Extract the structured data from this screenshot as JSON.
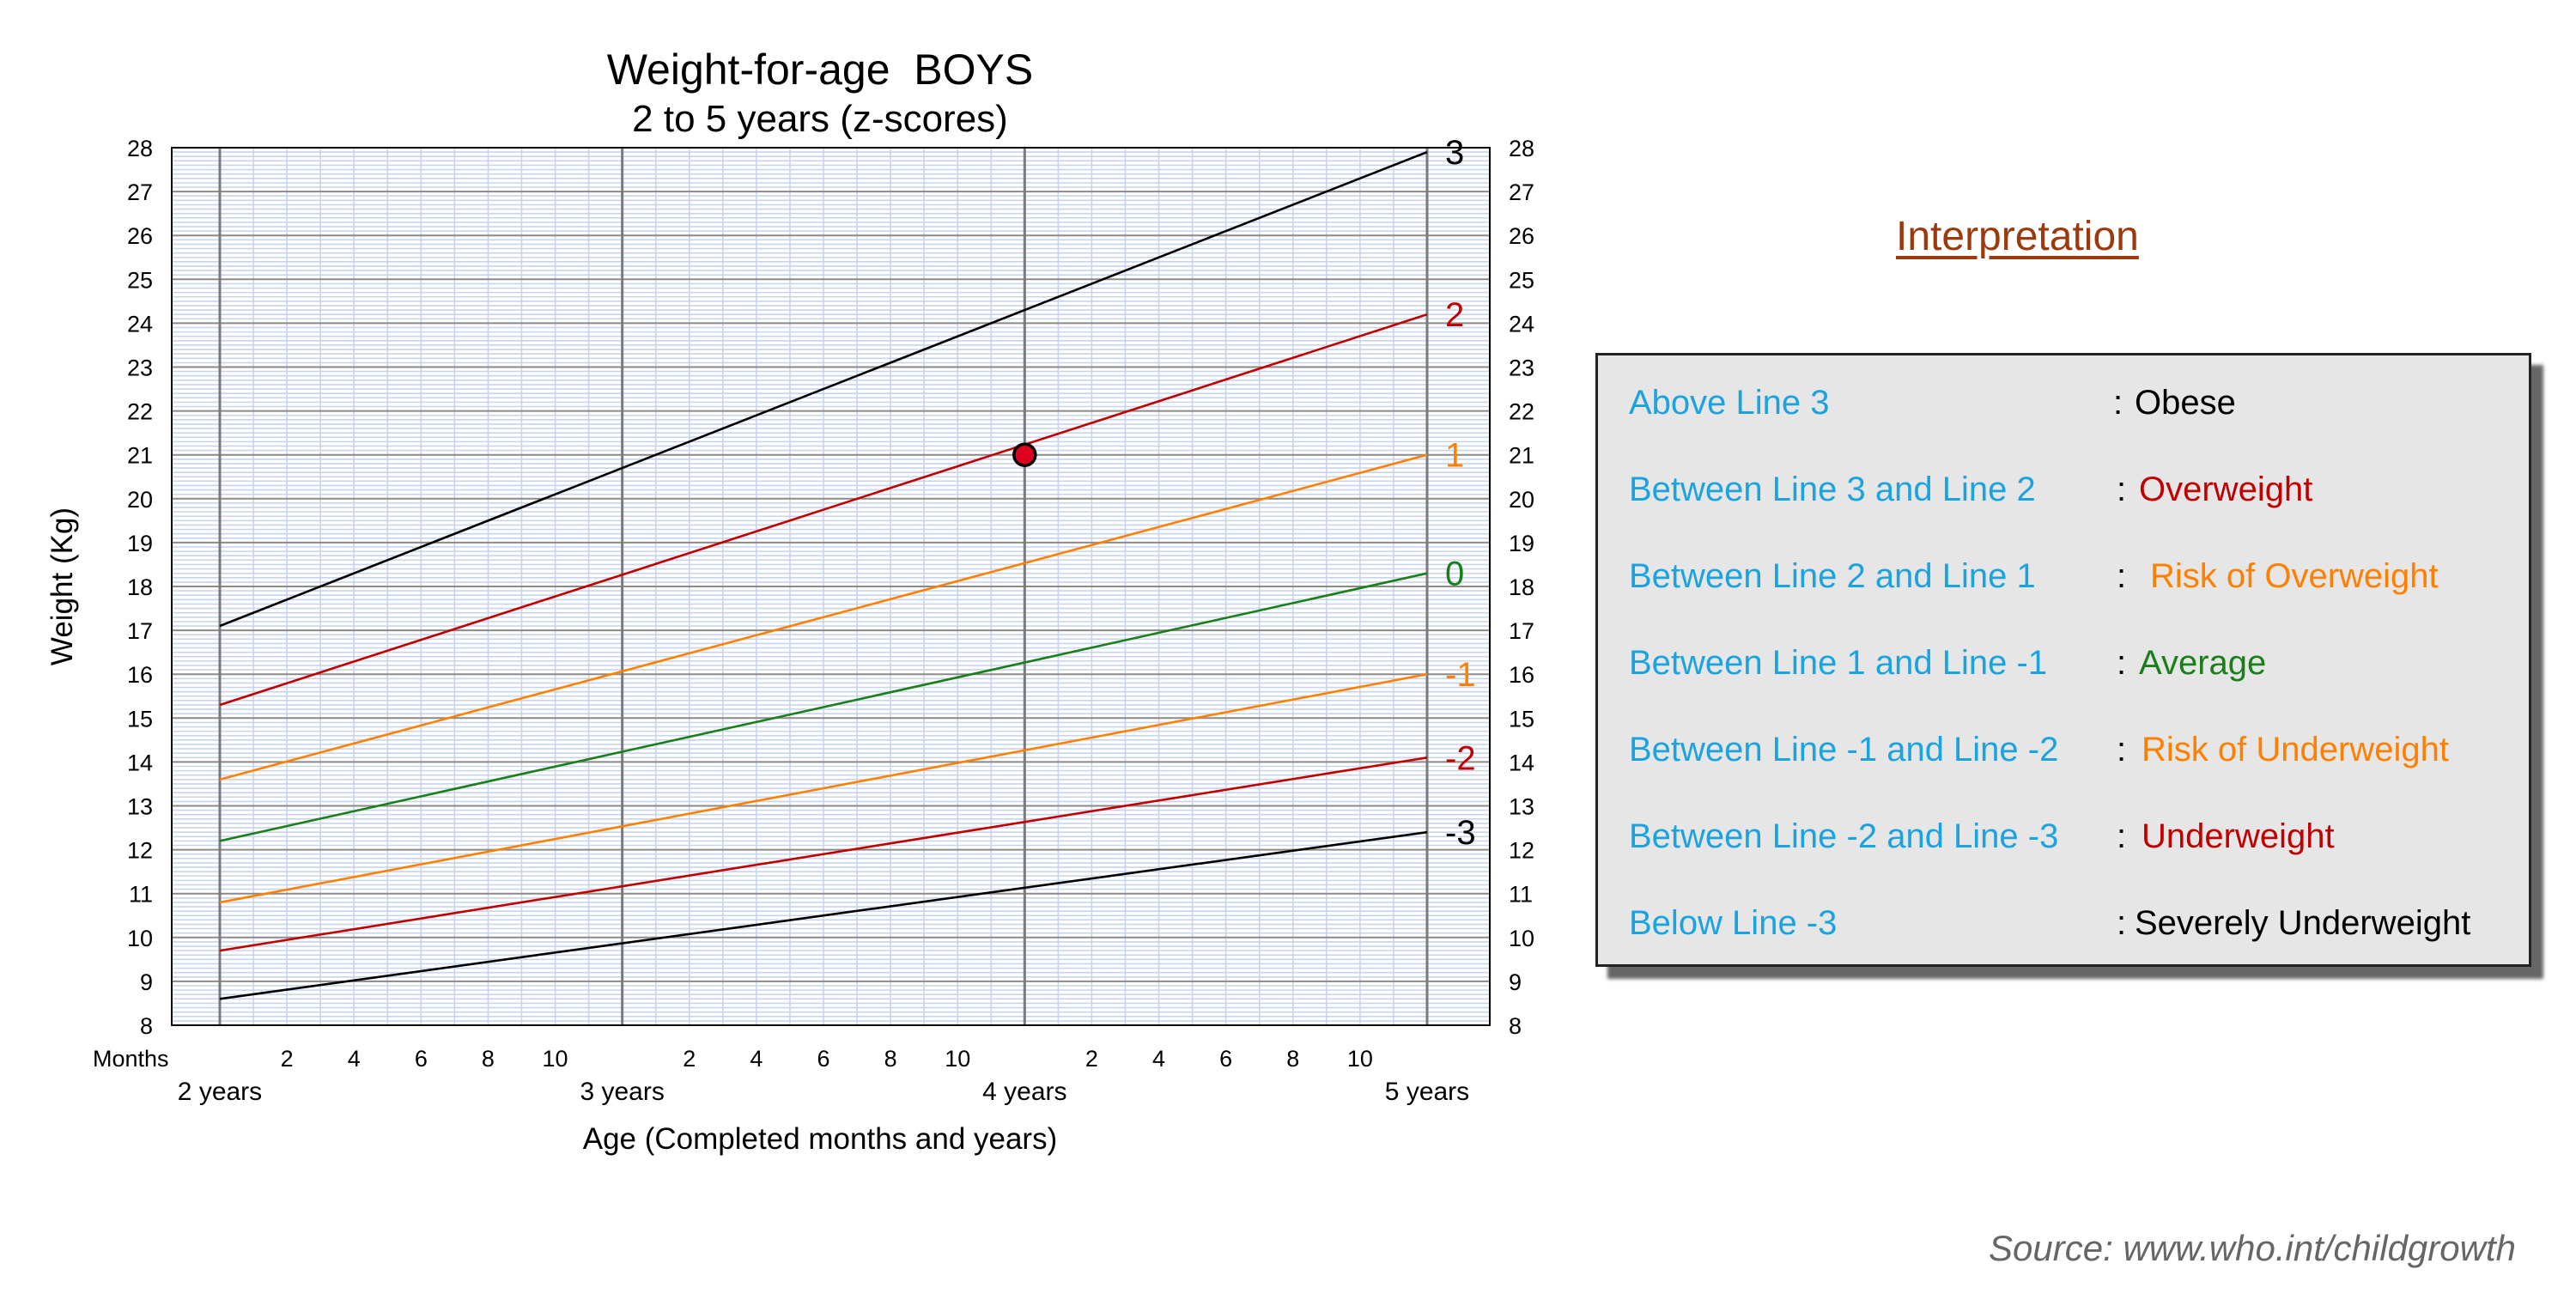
{
  "chart_data": {
    "type": "line",
    "title": "Weight-for-age  BOYS",
    "subtitle": "2 to 5 years (z-scores)",
    "xlabel": "Age (Completed months and years)",
    "ylabel": "Weight (Kg)",
    "x_unit_label": "Months",
    "ylim": [
      8,
      28
    ],
    "xlim_months": [
      24,
      60
    ],
    "y_ticks": [
      8,
      9,
      10,
      11,
      12,
      13,
      14,
      15,
      16,
      17,
      18,
      19,
      20,
      21,
      22,
      23,
      24,
      25,
      26,
      27,
      28
    ],
    "x_year_labels": [
      {
        "months": 24,
        "label": "2 years"
      },
      {
        "months": 36,
        "label": "3 years"
      },
      {
        "months": 48,
        "label": "4 years"
      },
      {
        "months": 60,
        "label": "5 years"
      }
    ],
    "x_month_ticks": [
      "2",
      "4",
      "6",
      "8",
      "10"
    ],
    "grid": true,
    "series": [
      {
        "name": "3",
        "color": "#000000",
        "x": [
          24,
          60
        ],
        "y": [
          17.1,
          27.9
        ]
      },
      {
        "name": "2",
        "color": "#c00000",
        "x": [
          24,
          60
        ],
        "y": [
          15.3,
          24.2
        ]
      },
      {
        "name": "1",
        "color": "#ff8000",
        "x": [
          24,
          60
        ],
        "y": [
          13.6,
          21.0
        ]
      },
      {
        "name": "0",
        "color": "#1a7f1a",
        "x": [
          24,
          60
        ],
        "y": [
          12.2,
          18.3
        ]
      },
      {
        "name": "-1",
        "color": "#ff8000",
        "x": [
          24,
          60
        ],
        "y": [
          10.8,
          16.0
        ]
      },
      {
        "name": "-2",
        "color": "#c00000",
        "x": [
          24,
          60
        ],
        "y": [
          9.7,
          14.1
        ]
      },
      {
        "name": "-3",
        "color": "#000000",
        "x": [
          24,
          60
        ],
        "y": [
          8.6,
          12.4
        ]
      }
    ],
    "highlight_point": {
      "x": 48,
      "y": 21.0,
      "color": "#e00020"
    }
  },
  "interpretation": {
    "title": "Interpretation",
    "rows": [
      {
        "condition": "Above Line 3",
        "colon": ":",
        "result": "Obese",
        "result_color": "#000000"
      },
      {
        "condition": "Between Line 3 and Line 2",
        "colon": ":",
        "result": "Overweight",
        "result_color": "#c00000"
      },
      {
        "condition": "Between Line 2 and Line 1",
        "colon": ":",
        "result": "Risk of Overweight",
        "result_color": "#ff8000"
      },
      {
        "condition": "Between Line 1 and Line -1",
        "colon": ":",
        "result": "Average",
        "result_color": "#1a7f1a"
      },
      {
        "condition": "Between Line -1 and Line -2",
        "colon": ":",
        "result": "Risk of Underweight",
        "result_color": "#ff8000"
      },
      {
        "condition": "Between Line -2 and Line -3",
        "colon": ":",
        "result": "Underweight",
        "result_color": "#c00000"
      },
      {
        "condition": "Below Line -3",
        "colon": ":",
        "result": "Severely Underweight",
        "result_color": "#000000"
      }
    ]
  },
  "source": "Source: www.who.int/childgrowth"
}
